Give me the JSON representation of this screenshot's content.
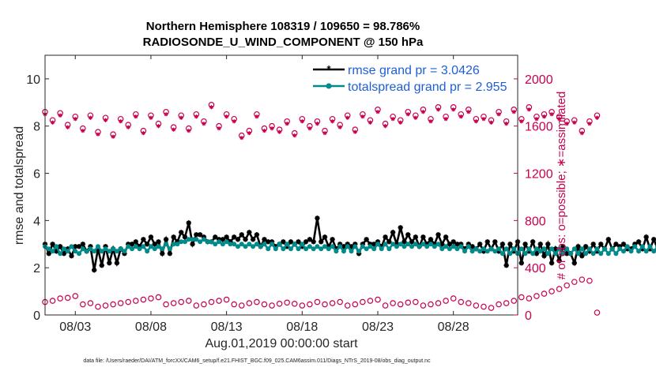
{
  "chart_data": {
    "type": "line",
    "title": "Northern Hemisphere 108319 / 109650 = 98.786%",
    "subtitle": "RADIOSONDE_U_WIND_COMPONENT @ 150 hPa",
    "xlabel": "Aug.01,2019 00:00:00 start",
    "ylabel_left": "rmse and totalspread",
    "ylabel_right": "# of obs: o=possible; ∗=assimilated",
    "footer": "data file: /Users/raeder/DAI/ATM_forcXX/CAM6_setup/f.e21.FHIST_BGC.f09_025.CAM6assim.011/Diags_NTrS_2019-08/obs_diag_output.nc",
    "x_ticks": [
      "08/03",
      "08/08",
      "08/13",
      "08/18",
      "08/23",
      "08/28"
    ],
    "y_left_ticks": [
      "0",
      "2",
      "4",
      "6",
      "8",
      "10"
    ],
    "y_right_ticks": [
      "0",
      "400",
      "800",
      "1200",
      "1600",
      "2000"
    ],
    "ylim_left": [
      0,
      11
    ],
    "ylim_right": [
      0,
      2200
    ],
    "xlim_days": [
      1.0,
      32.25
    ],
    "x_start_day": 1.0,
    "x_step_days": 0.25,
    "legend": [
      {
        "label": "rmse grand pr = 3.0426",
        "color": "#000000"
      },
      {
        "label": "totalspread grand pr = 2.955",
        "color": "#008b8b"
      }
    ],
    "series": [
      {
        "name": "rmse",
        "axis": "left",
        "color": "#000000",
        "marker": "asterisk",
        "values": [
          3.0,
          2.6,
          3.0,
          2.7,
          2.9,
          2.6,
          2.8,
          2.5,
          2.9,
          2.9,
          3.0,
          2.7,
          2.9,
          1.9,
          2.8,
          2.1,
          2.9,
          2.2,
          2.8,
          2.2,
          2.8,
          2.6,
          3.0,
          3.0,
          3.1,
          2.9,
          3.2,
          3.0,
          3.3,
          3.0,
          3.1,
          2.6,
          3.2,
          2.6,
          3.3,
          3.1,
          3.5,
          3.3,
          3.9,
          3.0,
          3.4,
          3.4,
          3.3,
          3.1,
          3.1,
          3.3,
          3.2,
          3.2,
          3.3,
          3.1,
          3.3,
          3.2,
          3.4,
          3.2,
          3.5,
          3.2,
          3.4,
          2.9,
          3.2,
          3.1,
          3.1,
          2.9,
          3.0,
          3.1,
          2.9,
          3.1,
          3.0,
          3.1,
          2.9,
          3.1,
          3.2,
          3.1,
          4.1,
          3.1,
          3.3,
          2.9,
          3.2,
          2.8,
          3.0,
          2.9,
          3.0,
          2.9,
          3.0,
          2.6,
          3.0,
          3.2,
          3.0,
          3.0,
          3.1,
          2.9,
          3.3,
          3.1,
          3.5,
          3.0,
          3.7,
          3.1,
          3.4,
          3.1,
          3.3,
          2.9,
          3.3,
          3.0,
          3.2,
          3.0,
          3.4,
          3.0,
          3.3,
          3.0,
          3.1,
          3.0,
          3.0,
          2.8,
          3.0,
          2.9,
          2.8,
          3.0,
          2.7,
          3.1,
          2.8,
          3.1,
          2.7,
          3.0,
          2.1,
          3.0,
          2.7,
          3.1,
          2.2,
          3.0,
          2.7,
          3.1,
          2.6,
          3.0,
          2.5,
          3.0,
          2.2,
          2.8,
          2.3,
          2.9,
          2.6,
          2.6,
          2.2,
          2.9,
          2.5,
          2.9,
          2.7,
          3.0,
          2.7,
          3.0,
          2.8,
          3.2,
          2.8,
          3.0,
          2.9,
          3.0,
          2.8,
          2.8,
          3.0,
          3.1,
          2.8,
          3.3,
          2.8,
          3.2,
          2.8,
          2.9,
          2.8,
          2.9,
          2.8,
          2.8,
          2.8,
          2.8,
          2.7,
          2.8,
          2.8,
          2.8,
          2.8,
          2.8,
          2.8,
          2.8,
          2.8,
          2.8,
          2.8,
          2.8,
          2.8,
          2.8,
          2.8,
          2.8,
          2.8,
          2.8,
          2.8,
          2.8,
          2.8,
          2.8,
          2.8,
          2.8,
          2.8,
          2.8,
          2.8
        ]
      },
      {
        "name": "totalspread",
        "axis": "left",
        "color": "#008b8b",
        "marker": "circle",
        "values": [
          2.9,
          2.8,
          2.7,
          2.9,
          2.6,
          2.8,
          2.7,
          2.9,
          2.7,
          2.6,
          2.8,
          2.7,
          2.8,
          2.7,
          2.9,
          2.7,
          2.8,
          2.7,
          2.8,
          2.7,
          2.8,
          2.7,
          2.9,
          2.8,
          2.9,
          2.8,
          2.9,
          2.7,
          2.9,
          2.8,
          2.9,
          2.8,
          3.0,
          2.8,
          3.0,
          3.0,
          3.1,
          3.1,
          3.2,
          3.2,
          3.2,
          3.1,
          3.2,
          3.1,
          3.1,
          3.0,
          3.1,
          3.0,
          3.1,
          3.0,
          3.0,
          2.9,
          3.0,
          2.9,
          3.0,
          2.9,
          3.0,
          2.9,
          3.0,
          2.8,
          3.0,
          2.8,
          3.0,
          2.8,
          3.0,
          2.8,
          3.0,
          2.8,
          3.0,
          2.8,
          2.9,
          2.8,
          2.9,
          2.8,
          2.9,
          2.8,
          2.9,
          2.7,
          2.9,
          2.7,
          2.9,
          2.7,
          2.9,
          2.7,
          2.9,
          2.8,
          2.9,
          2.8,
          3.0,
          2.8,
          3.0,
          2.8,
          3.0,
          2.9,
          3.0,
          2.9,
          3.0,
          2.9,
          3.0,
          2.9,
          3.0,
          2.9,
          3.0,
          2.9,
          3.0,
          2.8,
          2.9,
          2.8,
          2.9,
          2.8,
          2.9,
          2.7,
          2.9,
          2.7,
          2.8,
          2.7,
          2.8,
          2.7,
          2.8,
          2.7,
          2.8,
          2.6,
          2.8,
          2.6,
          2.8,
          2.6,
          2.8,
          2.6,
          2.8,
          2.6,
          2.8,
          2.7,
          2.8,
          2.6,
          2.8,
          2.6,
          2.8,
          2.6,
          2.8,
          2.6,
          2.8,
          2.6,
          2.8,
          2.6,
          2.8,
          2.6,
          2.8,
          2.6,
          2.8,
          2.6,
          2.8,
          2.6,
          2.8,
          2.7,
          2.9,
          2.7,
          2.9,
          2.7,
          2.9,
          2.7,
          2.9,
          2.7,
          2.9,
          2.7,
          2.8,
          2.7,
          2.8,
          2.7,
          2.8,
          2.8,
          2.8,
          2.8,
          2.8,
          2.8,
          2.8,
          2.8,
          2.8,
          2.8,
          2.8,
          2.8,
          2.8,
          2.8,
          2.8,
          2.8,
          2.8,
          2.8,
          2.8,
          2.8,
          2.8,
          2.8,
          2.8,
          2.8,
          2.8,
          2.8
        ]
      },
      {
        "name": "obs possible",
        "axis": "right",
        "color": "#c8004f",
        "marker": "open-circle",
        "x_start_day": 1.0,
        "x_step_days": 0.5,
        "values": [
          1720,
          1650,
          1710,
          1610,
          1680,
          1580,
          1690,
          1550,
          1670,
          1530,
          1660,
          1610,
          1700,
          1560,
          1690,
          1620,
          1720,
          1590,
          1690,
          1580,
          1700,
          1640,
          1780,
          1600,
          1700,
          1660,
          1520,
          1560,
          1700,
          1580,
          1600,
          1570,
          1640,
          1540,
          1660,
          1600,
          1640,
          1560,
          1660,
          1610,
          1690,
          1570,
          1700,
          1650,
          1740,
          1620,
          1680,
          1650,
          1720,
          1690,
          1740,
          1660,
          1760,
          1680,
          1760,
          1700,
          1740,
          1660,
          1680,
          1650,
          1720,
          1640,
          1740,
          1660,
          1760,
          1680,
          1700,
          1720,
          1680,
          1640,
          1650,
          1560,
          1640,
          1690
        ]
      },
      {
        "name": "obs assimilated",
        "axis": "right",
        "color": "#c8004f",
        "marker": "asterisk",
        "x_start_day": 1.0,
        "x_step_days": 0.5,
        "values": [
          1700,
          1630,
          1690,
          1590,
          1660,
          1560,
          1670,
          1530,
          1650,
          1510,
          1640,
          1590,
          1680,
          1540,
          1670,
          1600,
          1700,
          1570,
          1670,
          1560,
          1680,
          1620,
          1760,
          1580,
          1680,
          1640,
          1500,
          1540,
          1680,
          1560,
          1580,
          1550,
          1620,
          1520,
          1640,
          1580,
          1620,
          1540,
          1640,
          1590,
          1670,
          1550,
          1680,
          1630,
          1720,
          1600,
          1660,
          1630,
          1700,
          1670,
          1720,
          1640,
          1740,
          1660,
          1740,
          1680,
          1720,
          1640,
          1660,
          1630,
          1700,
          1620,
          1720,
          1640,
          1740,
          1660,
          1680,
          1700,
          1660,
          1620,
          1630,
          1540,
          1620,
          1670
        ]
      },
      {
        "name": "obs lower level",
        "axis": "right",
        "color": "#c8004f",
        "marker": "open-circle",
        "x_start_day": 1.0,
        "x_step_days": 0.5,
        "values": [
          110,
          120,
          140,
          145,
          160,
          90,
          100,
          70,
          80,
          90,
          100,
          110,
          120,
          130,
          140,
          150,
          90,
          100,
          110,
          120,
          80,
          90,
          110,
          120,
          130,
          90,
          80,
          100,
          110,
          90,
          80,
          95,
          105,
          95,
          80,
          90,
          110,
          90,
          100,
          110,
          80,
          90,
          110,
          120,
          130,
          80,
          100,
          90,
          105,
          110,
          80,
          90,
          100,
          120,
          140,
          110,
          100,
          80,
          70,
          60,
          90,
          100,
          120,
          150,
          140,
          160,
          180,
          200,
          220,
          250,
          280,
          300,
          290,
          20
        ]
      }
    ]
  }
}
